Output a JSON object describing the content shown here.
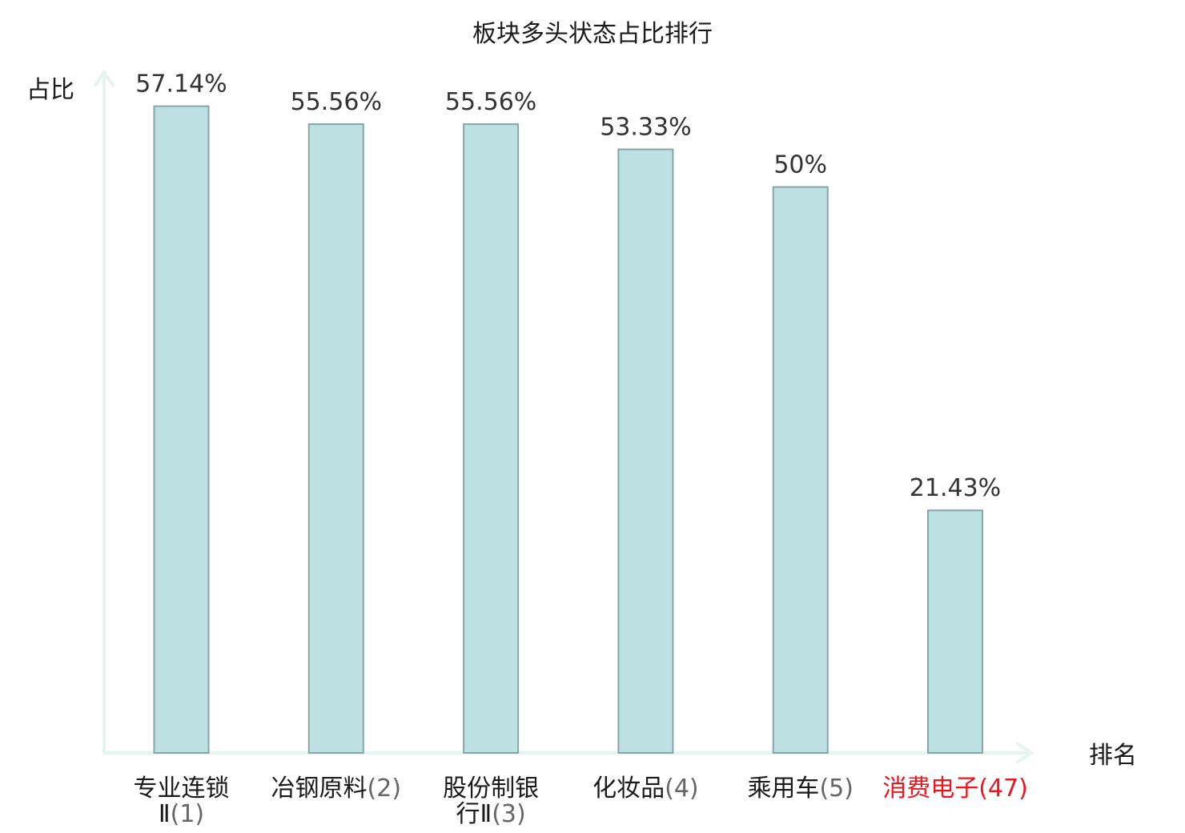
{
  "chart_data": {
    "type": "bar",
    "title": "板块多头状态占比排行",
    "ylabel": "占比",
    "xlabel": "排名",
    "ylim": [
      0,
      60
    ],
    "grid": false,
    "series": [
      {
        "values": [
          57.14,
          55.56,
          55.56,
          53.33,
          50,
          21.43
        ],
        "value_labels": [
          "57.14%",
          "55.56%",
          "55.56%",
          "53.33%",
          "50%",
          "21.43%"
        ]
      }
    ],
    "categories": [
      {
        "lines": [
          {
            "name": "专业连锁",
            "rank": ""
          },
          {
            "name": "Ⅱ",
            "rank": "(1)"
          }
        ],
        "highlight": false
      },
      {
        "lines": [
          {
            "name": "冶钢原料",
            "rank": "(2)"
          }
        ],
        "highlight": false
      },
      {
        "lines": [
          {
            "name": "股份制银",
            "rank": ""
          },
          {
            "name": "行Ⅱ",
            "rank": "(3)"
          }
        ],
        "highlight": false
      },
      {
        "lines": [
          {
            "name": "化妆品",
            "rank": "(4)"
          }
        ],
        "highlight": false
      },
      {
        "lines": [
          {
            "name": "乘用车",
            "rank": "(5)"
          }
        ],
        "highlight": false
      },
      {
        "lines": [
          {
            "name": "消费电子",
            "rank": "(47)"
          }
        ],
        "highlight": true
      }
    ],
    "colors": {
      "bar_fill": "#bde0e3",
      "bar_stroke": "#89a5a7",
      "axis": "#e3f4f1",
      "text": "#1a1a1a",
      "value_text": "#333333",
      "highlight": "#e8191e"
    }
  }
}
